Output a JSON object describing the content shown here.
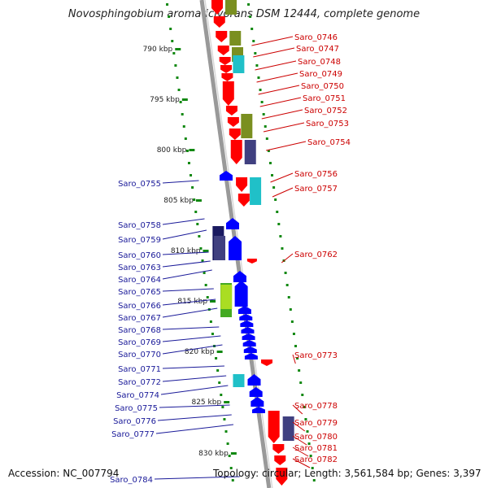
{
  "title": "Novosphingobium aromaticivorans DSM 12444, complete genome",
  "accession": "Accession: NC_007794",
  "summary": "Topology: circular; Length: 3,561,584 bp; Genes: 3,397",
  "colors": {
    "forward_gene": "#ff0000",
    "reverse_gene": "#0000ff",
    "forward_label": "#cc0000",
    "reverse_label": "#1a1a99",
    "backbone": "#888888",
    "gc_dots": "#118811",
    "cog_olive": "#7a8f20",
    "cog_cyan": "#20c0c8",
    "cog_navy": "#404080",
    "cog_green": "#44aa22",
    "cog_lime": "#aadd22",
    "cog_dark": "#1a1a60"
  },
  "kbp_ticks": [
    "790 kbp",
    "795 kbp",
    "800 kbp",
    "805 kbp",
    "810 kbp",
    "815 kbp",
    "820 kbp",
    "825 kbp",
    "830 kbp"
  ],
  "right_labels": [
    "Saro_0746",
    "Saro_0747",
    "Saro_0748",
    "Saro_0749",
    "Saro_0750",
    "Saro_0751",
    "Saro_0752",
    "Saro_0753",
    "Saro_0754",
    "Saro_0756",
    "Saro_0757",
    "Saro_0762",
    "Saro_0773",
    "Saro_0778",
    "Saro_0779",
    "Saro_0780",
    "Saro_0781",
    "Saro_0782"
  ],
  "left_labels": [
    "Saro_0755",
    "Saro_0758",
    "Saro_0759",
    "Saro_0760",
    "Saro_0763",
    "Saro_0764",
    "Saro_0765",
    "Saro_0766",
    "Saro_0767",
    "Saro_0768",
    "Saro_0769",
    "Saro_0770",
    "Saro_0771",
    "Saro_0772",
    "Saro_0774",
    "Saro_0775",
    "Saro_0776",
    "Saro_0777",
    "Saro_0784"
  ]
}
